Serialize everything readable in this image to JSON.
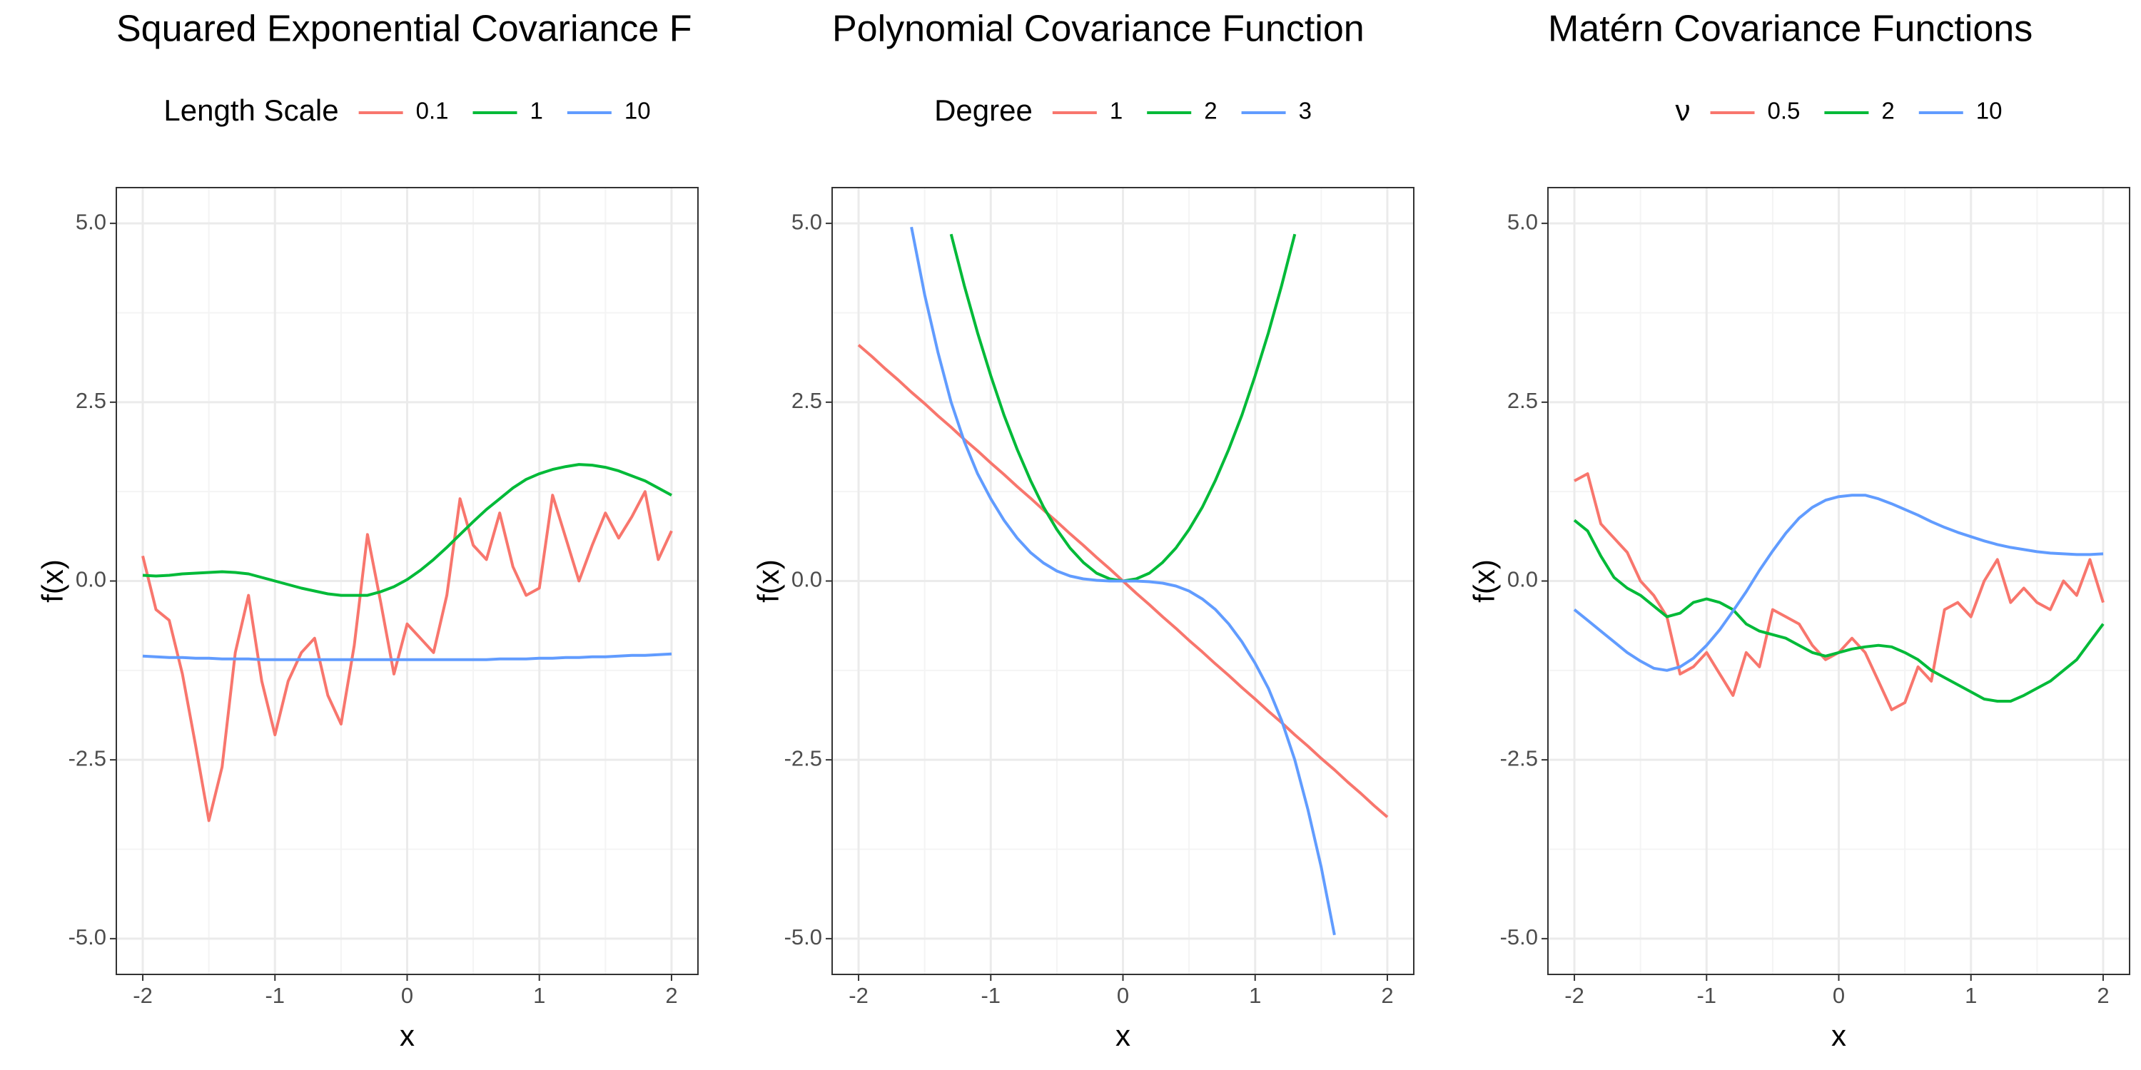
{
  "chart_data": [
    {
      "type": "line",
      "title": "Squared Exponential Covariance F",
      "legend_title": "Length Scale",
      "x_label": "x",
      "y_label": "f(x)",
      "x": [
        -2,
        -1.9,
        -1.8,
        -1.7,
        -1.6,
        -1.5,
        -1.4,
        -1.3,
        -1.2,
        -1.1,
        -1,
        -0.9,
        -0.8,
        -0.7,
        -0.6,
        -0.5,
        -0.4,
        -0.3,
        -0.2,
        -0.1,
        0,
        0.1,
        0.2,
        0.3,
        0.4,
        0.5,
        0.6,
        0.7,
        0.8,
        0.9,
        1,
        1.1,
        1.2,
        1.3,
        1.4,
        1.5,
        1.6,
        1.7,
        1.8,
        1.9,
        2
      ],
      "series": [
        {
          "name": "0.1",
          "color": "#F8766D",
          "values": [
            0.35,
            -0.4,
            -0.55,
            -1.3,
            -2.3,
            -3.35,
            -2.6,
            -1.0,
            -0.2,
            -1.4,
            -2.15,
            -1.4,
            -1.0,
            -0.8,
            -1.6,
            -2.0,
            -0.9,
            0.65,
            -0.3,
            -1.3,
            -0.6,
            -0.8,
            -1.0,
            -0.2,
            1.15,
            0.5,
            0.3,
            0.95,
            0.2,
            -0.2,
            -0.1,
            1.2,
            0.6,
            0.0,
            0.5,
            0.95,
            0.6,
            0.9,
            1.25,
            0.3,
            0.7
          ]
        },
        {
          "name": "1",
          "color": "#00BA38",
          "values": [
            0.08,
            0.07,
            0.08,
            0.1,
            0.11,
            0.12,
            0.13,
            0.12,
            0.1,
            0.05,
            0.0,
            -0.05,
            -0.1,
            -0.14,
            -0.18,
            -0.2,
            -0.2,
            -0.2,
            -0.15,
            -0.08,
            0.02,
            0.15,
            0.3,
            0.47,
            0.65,
            0.83,
            1.0,
            1.15,
            1.3,
            1.42,
            1.5,
            1.56,
            1.6,
            1.63,
            1.62,
            1.59,
            1.54,
            1.47,
            1.4,
            1.3,
            1.2
          ]
        },
        {
          "name": "10",
          "color": "#619CFF",
          "values": [
            -1.05,
            -1.06,
            -1.07,
            -1.07,
            -1.08,
            -1.08,
            -1.09,
            -1.09,
            -1.09,
            -1.1,
            -1.1,
            -1.1,
            -1.1,
            -1.1,
            -1.1,
            -1.1,
            -1.1,
            -1.1,
            -1.1,
            -1.1,
            -1.1,
            -1.1,
            -1.1,
            -1.1,
            -1.1,
            -1.1,
            -1.1,
            -1.09,
            -1.09,
            -1.09,
            -1.08,
            -1.08,
            -1.07,
            -1.07,
            -1.06,
            -1.06,
            -1.05,
            -1.04,
            -1.04,
            -1.03,
            -1.02
          ]
        }
      ],
      "xlim": [
        -2.2,
        2.2
      ],
      "ylim": [
        -5.5,
        5.5
      ],
      "xticks": [
        -2,
        -1,
        0,
        1,
        2
      ],
      "yticks": [
        {
          "value": -5,
          "label": "-5.0"
        },
        -2.5,
        {
          "value": 0,
          "label": "0.0"
        },
        2.5,
        {
          "value": 5,
          "label": "5.0"
        }
      ],
      "grid": true,
      "legend": "top"
    },
    {
      "type": "line",
      "title": "Polynomial Covariance Function",
      "legend_title": "Degree",
      "x_label": "x",
      "y_label": "f(x)",
      "x": [
        -2,
        -1.9,
        -1.8,
        -1.7,
        -1.6,
        -1.5,
        -1.4,
        -1.3,
        -1.2,
        -1.1,
        -1,
        -0.9,
        -0.8,
        -0.7,
        -0.6,
        -0.5,
        -0.4,
        -0.3,
        -0.2,
        -0.1,
        0,
        0.1,
        0.2,
        0.3,
        0.4,
        0.5,
        0.6,
        0.7,
        0.8,
        0.9,
        1,
        1.1,
        1.2,
        1.3,
        1.4,
        1.5,
        1.6,
        1.7,
        1.8,
        1.9,
        2
      ],
      "series": [
        {
          "name": "1",
          "color": "#F8766D",
          "values": [
            3.3,
            3.14,
            2.97,
            2.81,
            2.64,
            2.48,
            2.31,
            2.15,
            1.98,
            1.82,
            1.65,
            1.49,
            1.32,
            1.16,
            0.99,
            0.83,
            0.66,
            0.5,
            0.33,
            0.17,
            0,
            -0.17,
            -0.33,
            -0.5,
            -0.66,
            -0.83,
            -0.99,
            -1.16,
            -1.32,
            -1.49,
            -1.65,
            -1.82,
            -1.98,
            -2.15,
            -2.31,
            -2.48,
            -2.64,
            -2.81,
            -2.97,
            -3.14,
            -3.3
          ]
        },
        {
          "name": "2",
          "color": "#00BA38",
          "values": [
            null,
            null,
            null,
            null,
            null,
            null,
            null,
            4.85,
            4.13,
            3.47,
            2.87,
            2.32,
            1.84,
            1.41,
            1.03,
            0.72,
            0.46,
            0.26,
            0.11,
            0.03,
            0,
            0.03,
            0.11,
            0.26,
            0.46,
            0.72,
            1.03,
            1.41,
            1.84,
            2.32,
            2.87,
            3.47,
            4.13,
            4.85,
            null,
            null,
            null,
            null,
            null,
            null,
            null
          ]
        },
        {
          "name": "3",
          "color": "#619CFF",
          "values": [
            null,
            null,
            null,
            null,
            4.95,
            4.0,
            3.2,
            2.5,
            1.95,
            1.5,
            1.15,
            0.85,
            0.6,
            0.4,
            0.25,
            0.14,
            0.07,
            0.03,
            0.01,
            0.0,
            0,
            0.0,
            -0.01,
            -0.03,
            -0.07,
            -0.14,
            -0.25,
            -0.4,
            -0.6,
            -0.85,
            -1.15,
            -1.5,
            -1.95,
            -2.5,
            -3.2,
            -4.0,
            -4.95,
            null,
            null,
            null,
            null
          ]
        }
      ],
      "xlim": [
        -2.2,
        2.2
      ],
      "ylim": [
        -5.5,
        5.5
      ],
      "xticks": [
        -2,
        -1,
        0,
        1,
        2
      ],
      "yticks": [
        {
          "value": -5,
          "label": "-5.0"
        },
        -2.5,
        {
          "value": 0,
          "label": "0.0"
        },
        2.5,
        {
          "value": 5,
          "label": "5.0"
        }
      ],
      "grid": true,
      "legend": "top"
    },
    {
      "type": "line",
      "title": "Matérn Covariance Functions",
      "legend_title": "ν",
      "x_label": "x",
      "y_label": "f(x)",
      "x": [
        -2,
        -1.9,
        -1.8,
        -1.7,
        -1.6,
        -1.5,
        -1.4,
        -1.3,
        -1.2,
        -1.1,
        -1,
        -0.9,
        -0.8,
        -0.7,
        -0.6,
        -0.5,
        -0.4,
        -0.3,
        -0.2,
        -0.1,
        0,
        0.1,
        0.2,
        0.3,
        0.4,
        0.5,
        0.6,
        0.7,
        0.8,
        0.9,
        1,
        1.1,
        1.2,
        1.3,
        1.4,
        1.5,
        1.6,
        1.7,
        1.8,
        1.9,
        2
      ],
      "series": [
        {
          "name": "0.5",
          "color": "#F8766D",
          "values": [
            1.4,
            1.5,
            0.8,
            0.6,
            0.4,
            0.0,
            -0.2,
            -0.5,
            -1.3,
            -1.2,
            -1.0,
            -1.3,
            -1.6,
            -1.0,
            -1.2,
            -0.4,
            -0.5,
            -0.6,
            -0.9,
            -1.1,
            -1.0,
            -0.8,
            -1.0,
            -1.4,
            -1.8,
            -1.7,
            -1.2,
            -1.4,
            -0.4,
            -0.3,
            -0.5,
            0.0,
            0.3,
            -0.3,
            -0.1,
            -0.3,
            -0.4,
            0.0,
            -0.2,
            0.3,
            -0.3
          ]
        },
        {
          "name": "2",
          "color": "#00BA38",
          "values": [
            0.85,
            0.7,
            0.35,
            0.05,
            -0.1,
            -0.2,
            -0.35,
            -0.5,
            -0.45,
            -0.3,
            -0.25,
            -0.3,
            -0.4,
            -0.6,
            -0.7,
            -0.75,
            -0.8,
            -0.9,
            -1.0,
            -1.05,
            -1.0,
            -0.95,
            -0.92,
            -0.9,
            -0.92,
            -1.0,
            -1.1,
            -1.25,
            -1.35,
            -1.45,
            -1.55,
            -1.65,
            -1.68,
            -1.68,
            -1.6,
            -1.5,
            -1.4,
            -1.25,
            -1.1,
            -0.85,
            -0.6
          ]
        },
        {
          "name": "10",
          "color": "#619CFF",
          "values": [
            -0.4,
            -0.55,
            -0.7,
            -0.85,
            -1.0,
            -1.12,
            -1.22,
            -1.25,
            -1.2,
            -1.08,
            -0.9,
            -0.68,
            -0.42,
            -0.15,
            0.15,
            0.42,
            0.67,
            0.88,
            1.03,
            1.13,
            1.18,
            1.2,
            1.2,
            1.15,
            1.08,
            1.0,
            0.92,
            0.83,
            0.75,
            0.68,
            0.62,
            0.56,
            0.51,
            0.47,
            0.44,
            0.41,
            0.39,
            0.38,
            0.37,
            0.37,
            0.38
          ]
        }
      ],
      "xlim": [
        -2.2,
        2.2
      ],
      "ylim": [
        -5.5,
        5.5
      ],
      "xticks": [
        -2,
        -1,
        0,
        1,
        2
      ],
      "yticks": [
        {
          "value": -5,
          "label": "-5.0"
        },
        -2.5,
        {
          "value": 0,
          "label": "0.0"
        },
        2.5,
        {
          "value": 5,
          "label": "5.0"
        }
      ],
      "grid": true,
      "legend": "top"
    }
  ]
}
